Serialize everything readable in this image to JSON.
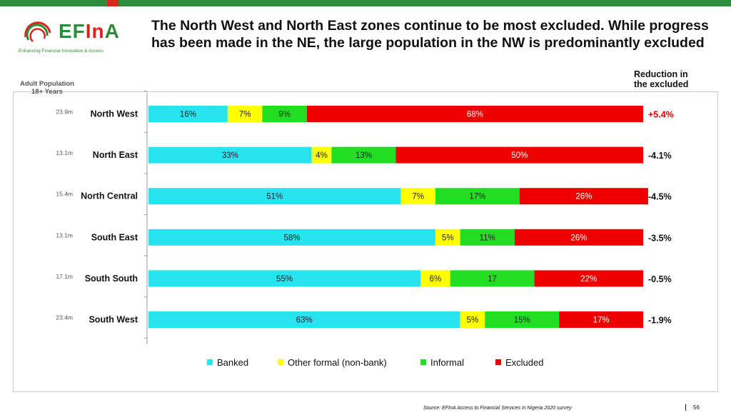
{
  "brand": {
    "logo_text_main": "EF",
    "logo_text_accent": "In",
    "logo_text_end": "A",
    "tagline": "Enhancing Financial Innovation & Access",
    "colors": {
      "green": "#2e8b3a",
      "red": "#d9261c"
    }
  },
  "title": "The North West and North East zones continue to be most excluded. While progress has been made in the NE, the large population in the NW is predominantly excluded",
  "population_header": {
    "line1": "Adult Population",
    "line2": "18+ Years"
  },
  "reduction_header": {
    "line1": "Reduction in",
    "line2": "the excluded"
  },
  "source": "Source: EFInA Access to Financial Services in Nigeria 2020 survey",
  "page_number": "56",
  "chart_data": {
    "type": "bar",
    "orientation": "horizontal",
    "stacked": true,
    "percent_stacked": true,
    "categories": [
      "North West",
      "North East",
      "North Central",
      "South East",
      "South South",
      "South West"
    ],
    "population": [
      "23.9m",
      "13.1m",
      "15.4m",
      "13.1m",
      "17.1m",
      "23.4m"
    ],
    "reduction_in_excluded": [
      "+5.4%",
      "-4.1%",
      "-4.5%",
      "-3.5%",
      "-0.5%",
      "-1.9%"
    ],
    "reduction_colors": [
      "#e00000",
      "#111111",
      "#111111",
      "#111111",
      "#111111",
      "#111111"
    ],
    "series": [
      {
        "name": "Banked",
        "color": "#27e4f0",
        "values": [
          16,
          33,
          51,
          58,
          55,
          63
        ],
        "labels": [
          "16%",
          "33%",
          "51%",
          "58%",
          "55%",
          "63%"
        ]
      },
      {
        "name": "Other formal (non-bank)",
        "color": "#ffff00",
        "values": [
          7,
          4,
          7,
          5,
          6,
          5
        ],
        "labels": [
          "7%",
          "4%",
          "7%",
          "5%",
          "6%",
          "5%"
        ]
      },
      {
        "name": "Informal",
        "color": "#22dd22",
        "values": [
          9,
          13,
          17,
          11,
          17,
          15
        ],
        "labels": [
          "9%",
          "13%",
          "17%",
          "11%",
          "17",
          "15%"
        ]
      },
      {
        "name": "Excluded",
        "color": "#ee0000",
        "values": [
          68,
          50,
          26,
          26,
          22,
          17
        ],
        "labels": [
          "68%",
          "50%",
          "26%",
          "26%",
          "22%",
          "17%"
        ]
      }
    ],
    "xlim": [
      0,
      100
    ],
    "legend_position": "bottom",
    "grid": false
  }
}
